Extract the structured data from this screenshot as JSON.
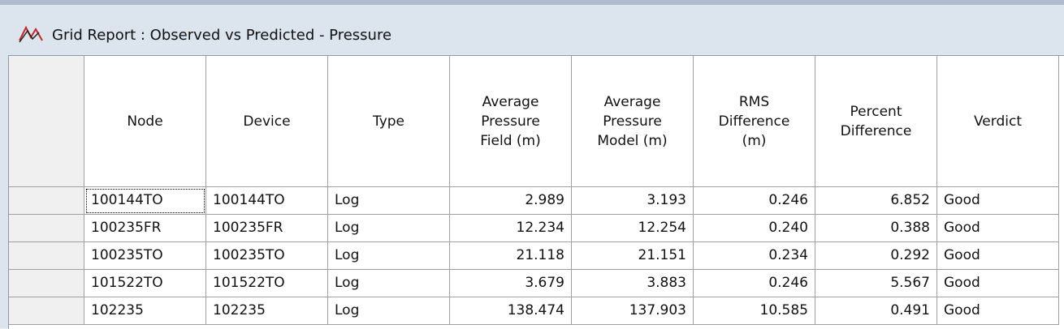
{
  "window": {
    "title": "Grid Report : Observed vs Predicted - Pressure"
  },
  "table": {
    "columns": [
      {
        "lines": [
          "Node"
        ],
        "align": "left"
      },
      {
        "lines": [
          "Device"
        ],
        "align": "left"
      },
      {
        "lines": [
          "Type"
        ],
        "align": "left"
      },
      {
        "lines": [
          "Average",
          "Pressure",
          "Field (m)"
        ],
        "align": "right"
      },
      {
        "lines": [
          "Average",
          "Pressure",
          "Model (m)"
        ],
        "align": "right"
      },
      {
        "lines": [
          "RMS",
          "Difference",
          "(m)"
        ],
        "align": "right"
      },
      {
        "lines": [
          "Percent",
          "Difference"
        ],
        "align": "right"
      },
      {
        "lines": [
          "Verdict"
        ],
        "align": "left"
      }
    ],
    "rows": [
      [
        "100144TO",
        "100144TO",
        "Log",
        "2.989",
        "3.193",
        "0.246",
        "6.852",
        "Good"
      ],
      [
        "100235FR",
        "100235FR",
        "Log",
        "12.234",
        "12.254",
        "0.240",
        "0.388",
        "Good"
      ],
      [
        "100235TO",
        "100235TO",
        "Log",
        "21.118",
        "21.151",
        "0.234",
        "0.292",
        "Good"
      ],
      [
        "101522TO",
        "101522TO",
        "Log",
        "3.679",
        "3.883",
        "0.246",
        "5.567",
        "Good"
      ],
      [
        "102235",
        "102235",
        "Log",
        "138.474",
        "137.903",
        "10.585",
        "0.491",
        "Good"
      ]
    ]
  }
}
